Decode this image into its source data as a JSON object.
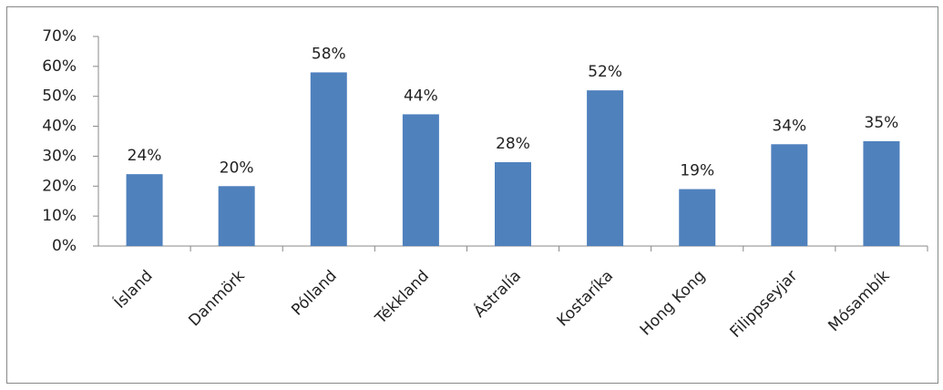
{
  "chart_data": {
    "type": "bar",
    "categories": [
      "Ísland",
      "Danmörk",
      "Pólland",
      "Tékkland",
      "Ástralía",
      "Kostaríka",
      "Hong Kong",
      "Filippseyjar",
      "Mósambík"
    ],
    "values": [
      24,
      20,
      58,
      44,
      28,
      52,
      19,
      34,
      35
    ],
    "value_labels": [
      "24%",
      "20%",
      "58%",
      "44%",
      "28%",
      "52%",
      "19%",
      "34%",
      "35%"
    ],
    "color": "#4f81bd",
    "ylim": [
      0,
      70
    ],
    "yticks": [
      {
        "value": 0,
        "label": "0%"
      },
      {
        "value": 10,
        "label": "10%"
      },
      {
        "value": 20,
        "label": "20%"
      },
      {
        "value": 30,
        "label": "30%"
      },
      {
        "value": 40,
        "label": "40%"
      },
      {
        "value": 50,
        "label": "50%"
      },
      {
        "value": 60,
        "label": "60%"
      },
      {
        "value": 70,
        "label": "70%"
      }
    ],
    "grid": false
  }
}
